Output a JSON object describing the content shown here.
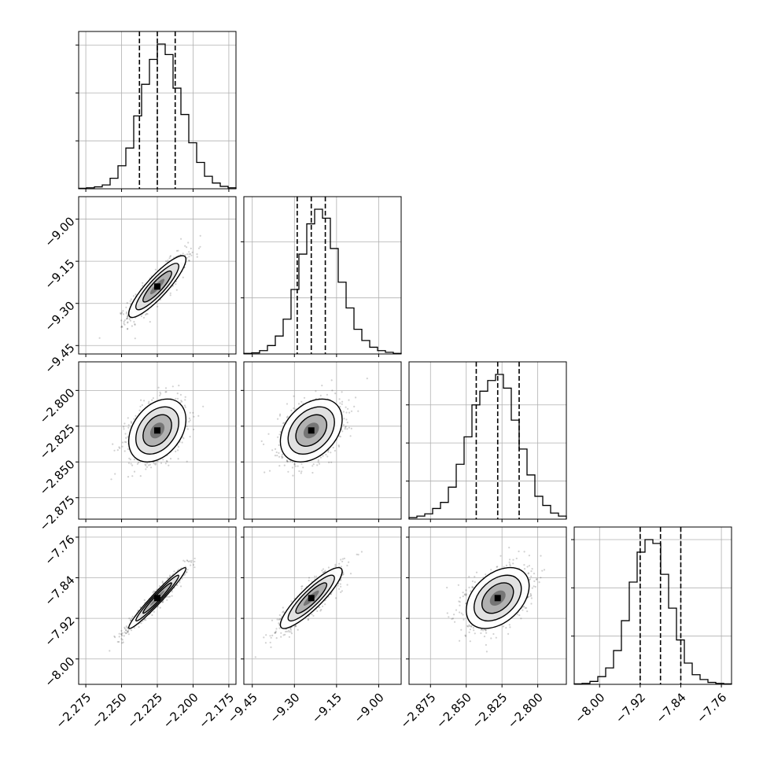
{
  "chart_data": {
    "type": "corner",
    "title": "",
    "grid": true,
    "parameters": [
      {
        "range": [
          -2.28,
          -2.17
        ],
        "ticks": [
          -2.275,
          -2.25,
          -2.225,
          -2.2,
          -2.175
        ],
        "tick_labels": [
          "−2.275",
          "−2.250",
          "−2.225",
          "−2.200",
          "−2.175"
        ],
        "quantiles": [
          -2.2375,
          -2.225,
          -2.2125
        ],
        "histogram": [
          1,
          2,
          4,
          8,
          22,
          48,
          85,
          152,
          218,
          270,
          302,
          280,
          210,
          155,
          96,
          55,
          26,
          12,
          5,
          2
        ],
        "hist_ticks": [
          100,
          200,
          300
        ]
      },
      {
        "range": [
          -9.48,
          -8.92
        ],
        "ticks": [
          -9.45,
          -9.3,
          -9.15,
          -9.0
        ],
        "tick_labels": [
          "−9.45",
          "−9.30",
          "−9.15",
          "−9.00"
        ],
        "quantiles": [
          -9.29,
          -9.24,
          -9.19
        ],
        "histogram": [
          1,
          2,
          6,
          15,
          32,
          62,
          115,
          178,
          232,
          258,
          242,
          188,
          128,
          82,
          44,
          24,
          12,
          6,
          3,
          1
        ],
        "hist_ticks": [
          100,
          200
        ]
      },
      {
        "range": [
          -2.89,
          -2.78
        ],
        "ticks": [
          -2.875,
          -2.85,
          -2.825,
          -2.8
        ],
        "tick_labels": [
          "−2.875",
          "−2.850",
          "−2.825",
          "−2.800"
        ],
        "quantiles": [
          -2.843,
          -2.828,
          -2.813
        ],
        "histogram": [
          2,
          4,
          7,
          14,
          22,
          42,
          72,
          108,
          150,
          168,
          182,
          190,
          172,
          130,
          92,
          58,
          30,
          18,
          8,
          4
        ],
        "hist_ticks": [
          50,
          100,
          150
        ]
      },
      {
        "range": [
          -8.05,
          -7.74
        ],
        "ticks": [
          -8.0,
          -7.92,
          -7.84,
          -7.76
        ],
        "tick_labels": [
          "−8.00",
          "−7.92",
          "−7.84",
          "−7.76"
        ],
        "quantiles": [
          -7.92,
          -7.88,
          -7.84
        ],
        "histogram": [
          1,
          2,
          6,
          16,
          34,
          70,
          132,
          212,
          274,
          300,
          292,
          228,
          158,
          92,
          44,
          20,
          10,
          4,
          2,
          1
        ],
        "hist_ticks": [
          100,
          200,
          300
        ]
      }
    ],
    "pairs": [
      {
        "row": 1,
        "col": 0,
        "center": [
          -2.225,
          -9.24
        ],
        "sd": [
          0.01,
          0.055
        ],
        "rho": 0.88
      },
      {
        "row": 2,
        "col": 0,
        "center": [
          -2.225,
          -2.828
        ],
        "sd": [
          0.01,
          0.011
        ],
        "rho": 0.35
      },
      {
        "row": 2,
        "col": 1,
        "center": [
          -9.24,
          -2.828
        ],
        "sd": [
          0.055,
          0.011
        ],
        "rho": 0.35
      },
      {
        "row": 3,
        "col": 0,
        "center": [
          -2.225,
          -7.88
        ],
        "sd": [
          0.01,
          0.03
        ],
        "rho": 0.97
      },
      {
        "row": 3,
        "col": 1,
        "center": [
          -9.24,
          -7.88
        ],
        "sd": [
          0.055,
          0.03
        ],
        "rho": 0.88
      },
      {
        "row": 3,
        "col": 2,
        "center": [
          -2.828,
          -7.88
        ],
        "sd": [
          0.011,
          0.03
        ],
        "rho": 0.4
      }
    ]
  }
}
